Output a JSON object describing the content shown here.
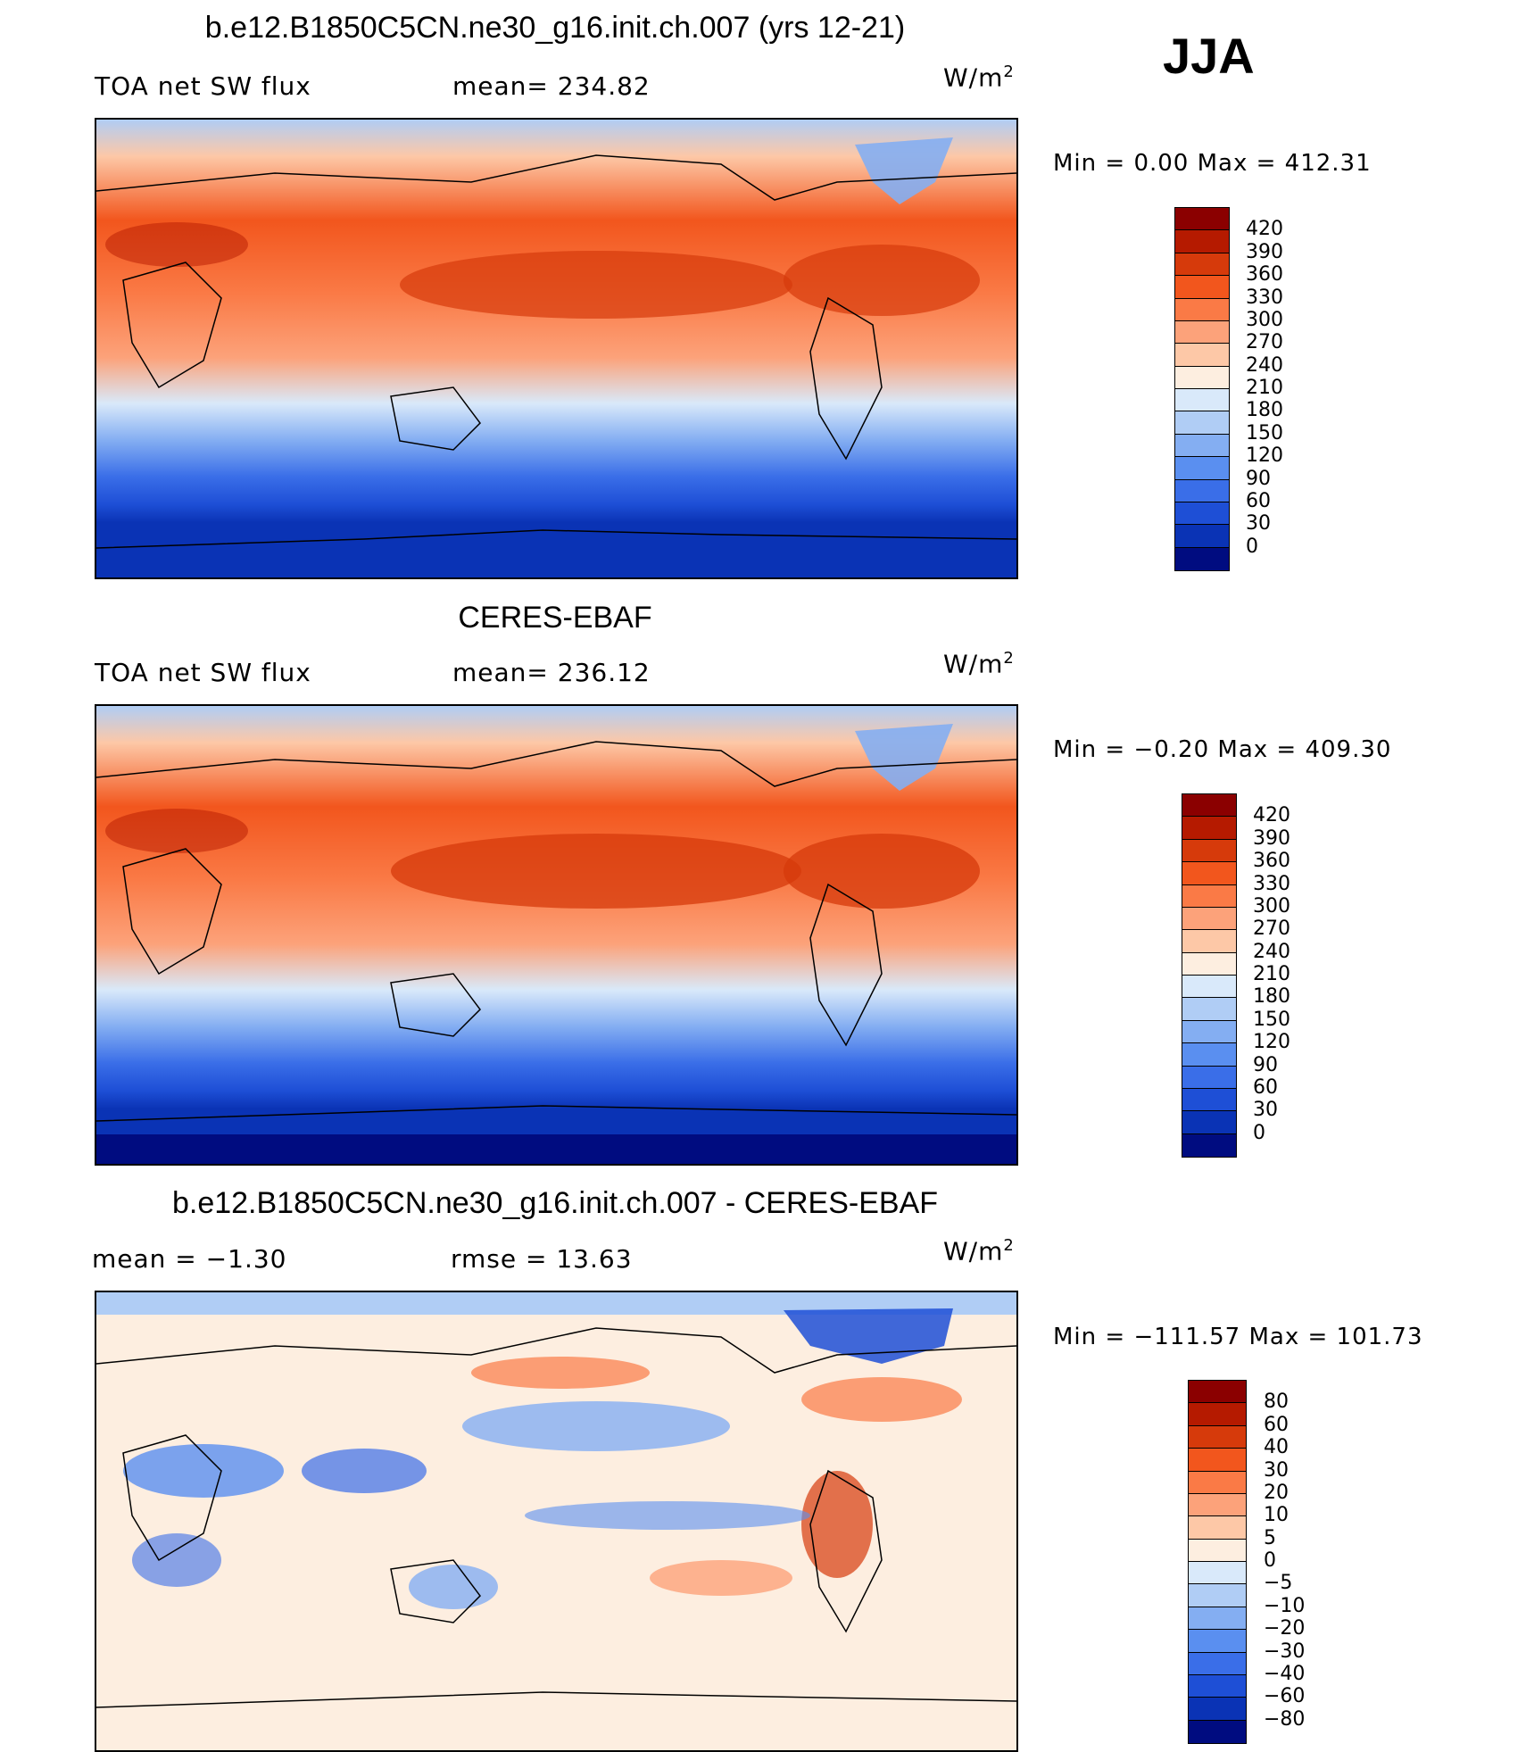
{
  "season": "JJA",
  "panels": [
    {
      "id": "model",
      "title": "b.e12.B1850C5CN.ne30_g16.init.ch.007 (yrs 12-21)",
      "left_label": "TOA net SW flux",
      "center_label": "mean= 234.82",
      "units_base": "W/m",
      "units_exp": "2",
      "minmax": "Min =    0.00 Max = 412.31",
      "field": "absolute"
    },
    {
      "id": "obs",
      "title": "CERES-EBAF",
      "left_label": "TOA net SW flux",
      "center_label": "mean= 236.12",
      "units_base": "W/m",
      "units_exp": "2",
      "minmax": "Min =  −0.20 Max = 409.30",
      "field": "absolute"
    },
    {
      "id": "diff",
      "title": "b.e12.B1850C5CN.ne30_g16.init.ch.007 - CERES-EBAF",
      "left_label": "mean =   −1.30",
      "center_label": "rmse =   13.63",
      "units_base": "W/m",
      "units_exp": "2",
      "minmax": "Min = −111.57 Max = 101.73",
      "field": "difference"
    }
  ],
  "colorbars": {
    "absolute": {
      "labels": [
        "420",
        "390",
        "360",
        "330",
        "300",
        "270",
        "240",
        "210",
        "180",
        "150",
        "120",
        "90",
        "60",
        "30",
        "0"
      ],
      "colors": [
        "#8b0000",
        "#b51a00",
        "#d63a0b",
        "#f2561d",
        "#fa7a46",
        "#fca27a",
        "#fdc8a7",
        "#fdeee0",
        "#d9e9fa",
        "#b0cdf5",
        "#84aef2",
        "#5a8ff0",
        "#3a6ee8",
        "#1e4fd6",
        "#0a33b5",
        "#000c80"
      ]
    },
    "difference": {
      "labels": [
        "80",
        "60",
        "40",
        "30",
        "20",
        "10",
        "5",
        "0",
        "−5",
        "−10",
        "−20",
        "−30",
        "−40",
        "−60",
        "−80"
      ],
      "colors": [
        "#8b0000",
        "#b51a00",
        "#d63a0b",
        "#f2561d",
        "#fa7a46",
        "#fca27a",
        "#fdc8a7",
        "#fdeee0",
        "#d9e9fa",
        "#b0cdf5",
        "#84aef2",
        "#5a8ff0",
        "#3a6ee8",
        "#1e4fd6",
        "#0a33b5",
        "#000c80"
      ]
    }
  },
  "map_palette": {
    "ocean_south_deep": "#0a33b5",
    "ocean_south_mid": "#1e4fd6",
    "land_outline": "#000000",
    "diff_neutral": "#fdeee0"
  }
}
